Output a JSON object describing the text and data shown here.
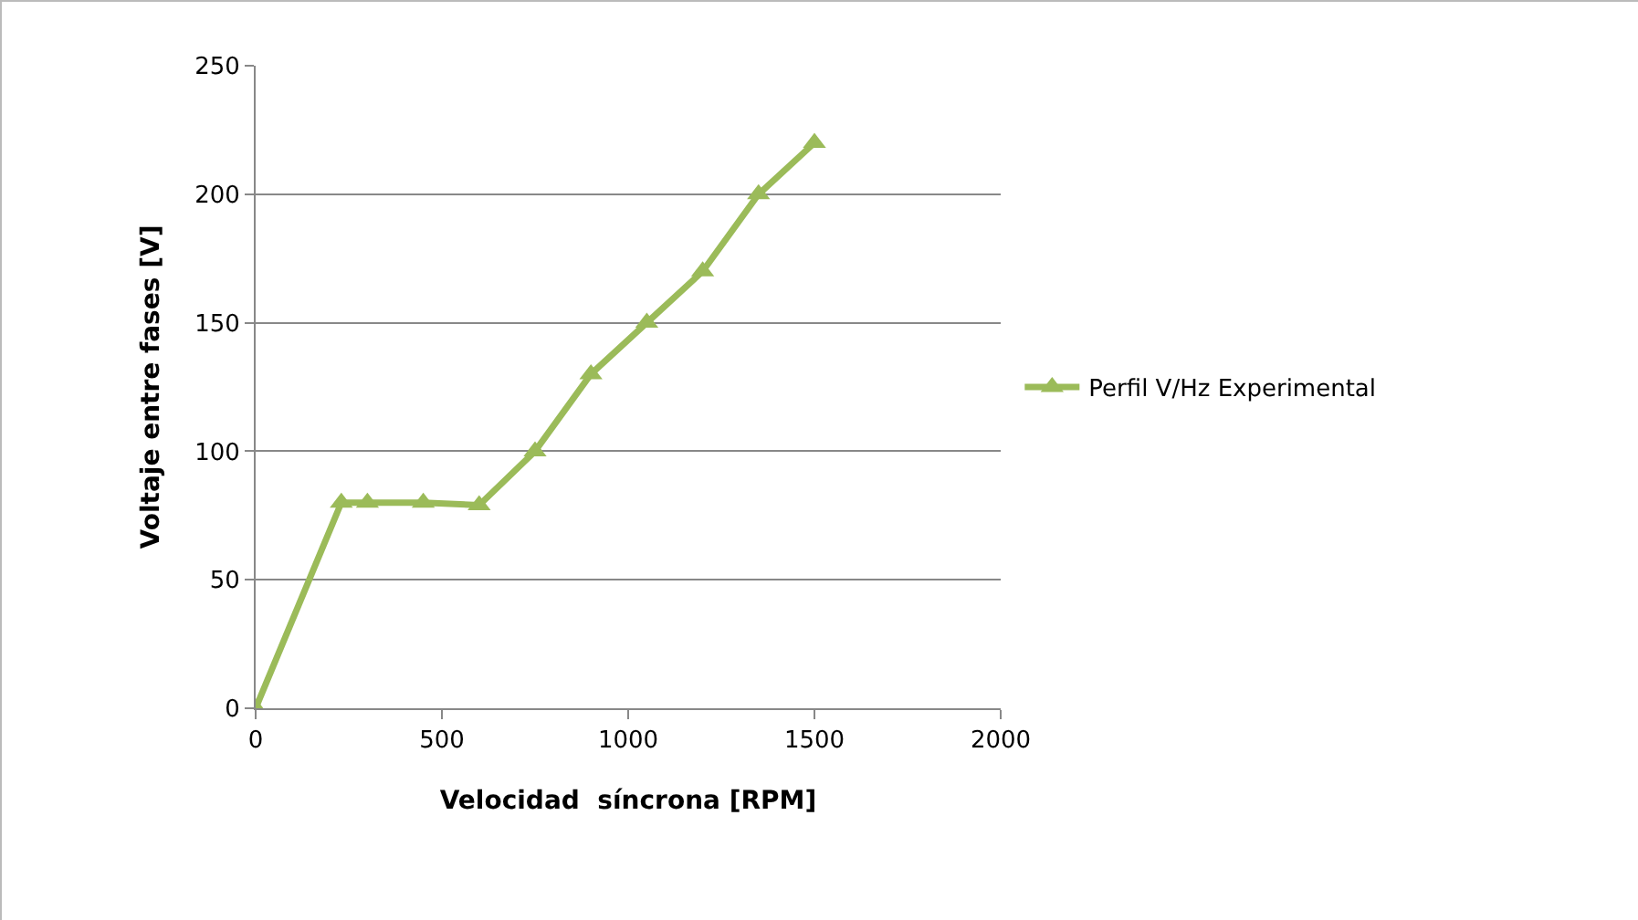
{
  "chart_data": {
    "type": "line",
    "xlabel": "Velocidad  síncrona [RPM]",
    "ylabel": "Voltaje entre fases [V]",
    "x": [
      0,
      230,
      300,
      450,
      600,
      750,
      900,
      1050,
      1200,
      1350,
      1500
    ],
    "series": [
      {
        "name": "Perfil V/Hz Experimental",
        "color": "#9bbb59",
        "values": [
          0,
          80,
          80,
          80,
          79,
          100,
          130,
          150,
          170,
          200,
          220
        ]
      }
    ],
    "xlim": [
      0,
      2000
    ],
    "xticks": [
      0,
      500,
      1000,
      1500,
      2000
    ],
    "ylim": [
      0,
      250
    ],
    "yticks": [
      0,
      50,
      100,
      150,
      200,
      250
    ],
    "grid": "y",
    "legend": "right",
    "marker": "triangle",
    "line_style": "solid"
  }
}
